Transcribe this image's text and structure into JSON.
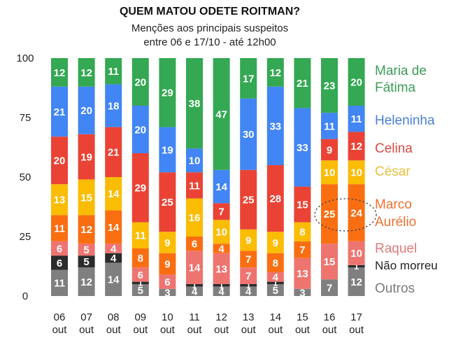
{
  "chart_data": {
    "type": "bar",
    "stacked": true,
    "title": "QUEM MATOU ODETE ROITMAN?",
    "subtitle": [
      "Menções aos principais suspeitos",
      "entre 06 e 17/10 - até 12h00"
    ],
    "xlabel": "",
    "ylabel": "",
    "ylim": [
      0,
      100
    ],
    "yticks": [
      0,
      25,
      50,
      75,
      100
    ],
    "grid": false,
    "legend_placement": "right",
    "categories": [
      [
        "06",
        "out"
      ],
      [
        "07",
        "out"
      ],
      [
        "08",
        "out"
      ],
      [
        "09",
        "out"
      ],
      [
        "10",
        "out"
      ],
      [
        "11",
        "out"
      ],
      [
        "12",
        "out"
      ],
      [
        "13",
        "out"
      ],
      [
        "14",
        "out"
      ],
      [
        "15",
        "out"
      ],
      [
        "16",
        "out"
      ],
      [
        "17",
        "out"
      ]
    ],
    "series": [
      {
        "name": "Outros",
        "legend": [
          "Outros"
        ],
        "color": "#7f7f7f",
        "legend_color": "#7a7a7a",
        "values": [
          11,
          12,
          14,
          5,
          3,
          4,
          4,
          4,
          5,
          3,
          7,
          12
        ]
      },
      {
        "name": "Não morreu",
        "legend": [
          "Não morreu"
        ],
        "color": "#2b2b2b",
        "legend_color": "#222222",
        "values": [
          6,
          5,
          4,
          1,
          0,
          1,
          1,
          1,
          1,
          0,
          0,
          1
        ]
      },
      {
        "name": "Raquel",
        "legend": [
          "Raquel"
        ],
        "color": "#ee7470",
        "legend_color": "#e07a7a",
        "values": [
          6,
          5,
          4,
          6,
          6,
          14,
          13,
          7,
          4,
          13,
          15,
          10
        ]
      },
      {
        "name": "Marco Aurélio",
        "legend": [
          "Marco",
          "Aurélio"
        ],
        "color": "#fa6e12",
        "legend_color": "#f07030",
        "values": [
          11,
          12,
          14,
          8,
          9,
          6,
          4,
          7,
          8,
          7,
          25,
          24
        ]
      },
      {
        "name": "César",
        "legend": [
          "César"
        ],
        "color": "#fbbc04",
        "legend_color": "#e8c040",
        "values": [
          13,
          15,
          14,
          11,
          9,
          16,
          10,
          9,
          9,
          8,
          10,
          10
        ]
      },
      {
        "name": "Celina",
        "legend": [
          "Celina"
        ],
        "color": "#ea4335",
        "legend_color": "#d94a44",
        "values": [
          20,
          19,
          21,
          29,
          25,
          11,
          7,
          25,
          28,
          15,
          9,
          12
        ]
      },
      {
        "name": "Heleninha",
        "legend": [
          "Heleninha"
        ],
        "color": "#4285f4",
        "legend_color": "#4a7fd6",
        "values": [
          21,
          20,
          18,
          20,
          19,
          10,
          14,
          30,
          33,
          33,
          11,
          11
        ]
      },
      {
        "name": "Maria de Fátima",
        "legend": [
          "Maria de",
          "Fátima"
        ],
        "color": "#34a853",
        "legend_color": "#3c9c57",
        "values": [
          12,
          12,
          11,
          20,
          29,
          38,
          47,
          17,
          12,
          21,
          23,
          20
        ]
      }
    ],
    "annotations": [
      {
        "type": "dotted-ellipse",
        "around": "Marco Aurélio",
        "categories": [
          "16 out",
          "17 out"
        ]
      }
    ]
  }
}
